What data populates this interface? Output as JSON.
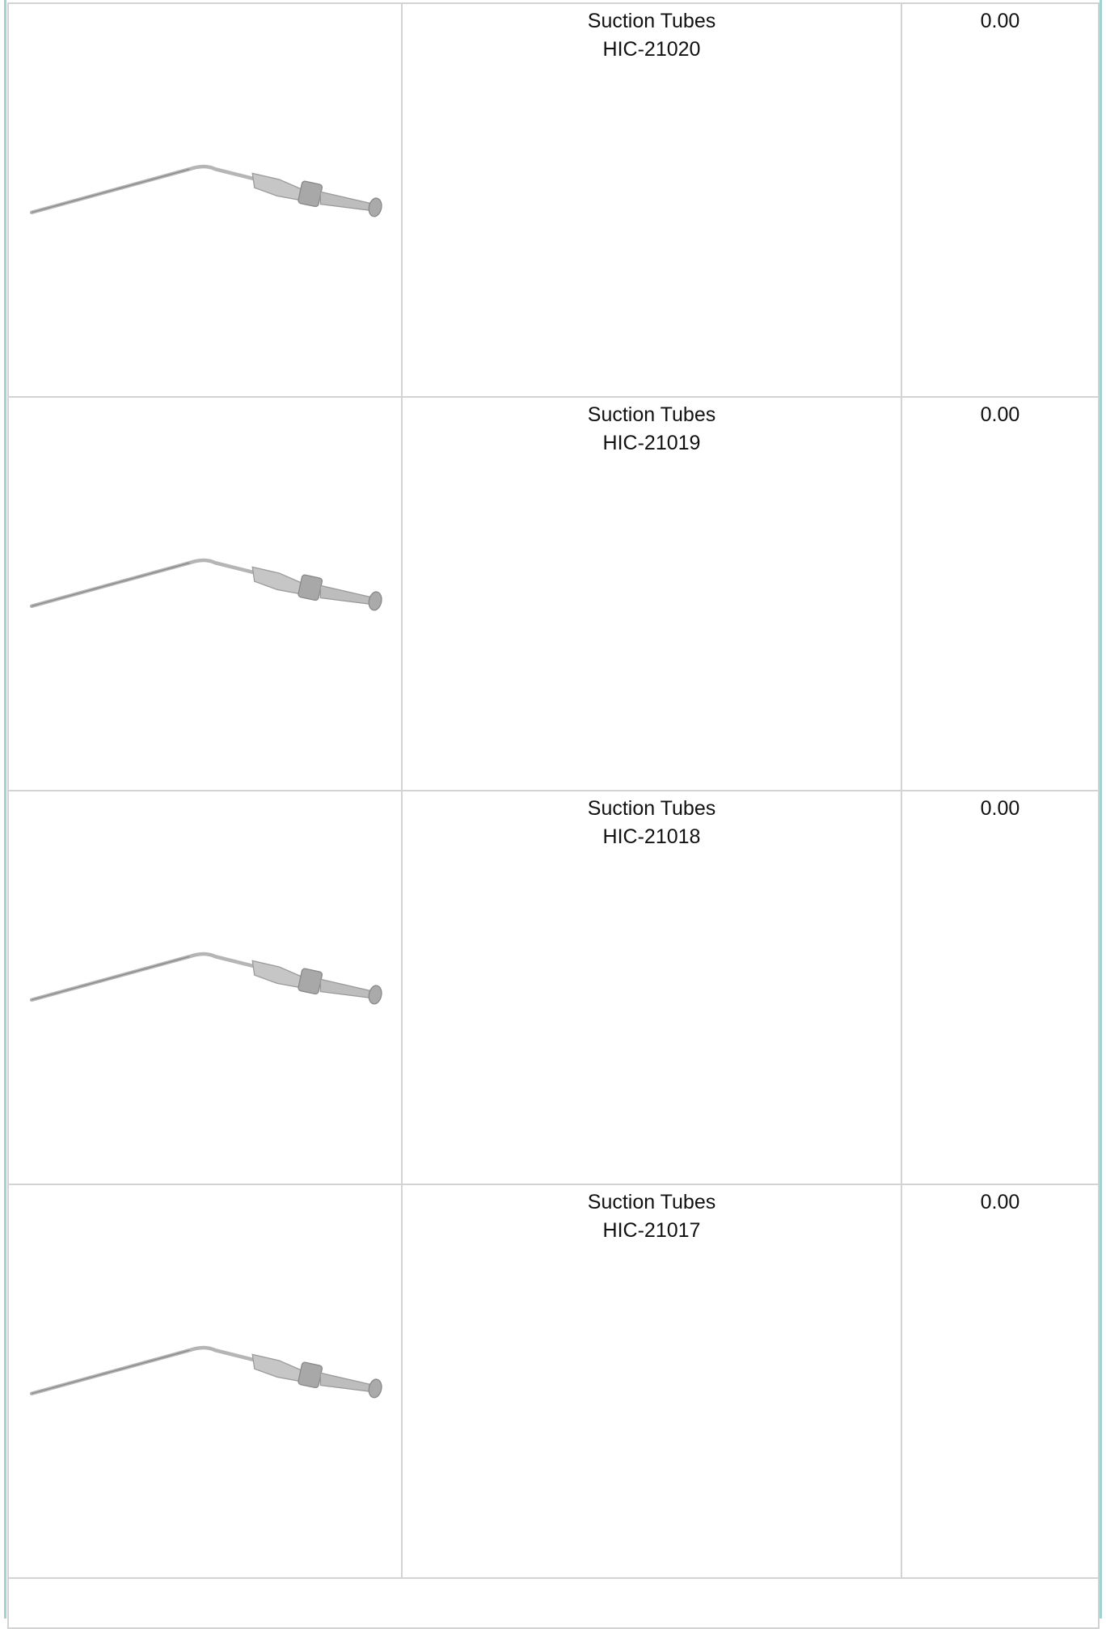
{
  "table": {
    "rows": [
      {
        "name": "Suction Tubes",
        "code": "HIC-21020",
        "price": "0.00"
      },
      {
        "name": "Suction Tubes",
        "code": "HIC-21019",
        "price": "0.00"
      },
      {
        "name": "Suction Tubes",
        "code": "HIC-21018",
        "price": "0.00"
      },
      {
        "name": "Suction Tubes",
        "code": "HIC-21017",
        "price": "0.00"
      }
    ]
  }
}
